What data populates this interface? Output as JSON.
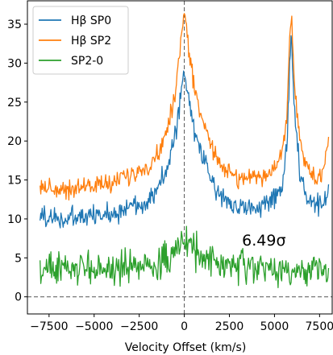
{
  "chart_data": {
    "type": "line",
    "xlabel": "Velocity Offset (km/s)",
    "ylabel": "",
    "xlim": [
      -8700,
      8200
    ],
    "ylim": [
      -2.2,
      38
    ],
    "xticks": [
      -7500,
      -5000,
      -2500,
      0,
      2500,
      5000,
      7500
    ],
    "xtick_labels": [
      "−7500",
      "−5000",
      "−2500",
      "0",
      "2500",
      "5000",
      "7500"
    ],
    "yticks": [
      0,
      5,
      10,
      15,
      20,
      25,
      30,
      35
    ],
    "ytick_labels": [
      "0",
      "5",
      "10",
      "15",
      "20",
      "25",
      "30",
      "35"
    ],
    "grid": false,
    "legend_position": "top-left",
    "reference_lines": [
      {
        "orientation": "horizontal",
        "value": 0,
        "style": "dashed",
        "color": "#555555"
      },
      {
        "orientation": "vertical",
        "value": 0,
        "style": "dashed",
        "color": "#555555"
      }
    ],
    "annotations": [
      {
        "text": "6.49σ",
        "x": 3200,
        "y": 6.6
      }
    ],
    "series": [
      {
        "name": "Hβ SP0",
        "color": "#1f77b4",
        "x": [
          -8000,
          -7500,
          -7000,
          -6500,
          -6000,
          -5500,
          -5000,
          -4500,
          -4000,
          -3500,
          -3000,
          -2500,
          -2000,
          -1500,
          -1000,
          -600,
          -300,
          -100,
          0,
          100,
          300,
          600,
          1000,
          1500,
          2000,
          2500,
          3000,
          3500,
          4000,
          4500,
          5000,
          5400,
          5700,
          5850,
          5950,
          6100,
          6400,
          6800,
          7200,
          7600,
          8000
        ],
        "y": [
          10.5,
          10.2,
          10.0,
          10.0,
          10.1,
          10.3,
          10.3,
          10.5,
          10.8,
          11.1,
          11.5,
          11.9,
          12.6,
          13.8,
          16.0,
          19.5,
          24.0,
          27.5,
          29.0,
          27.2,
          24.2,
          21.0,
          18.0,
          15.0,
          13.2,
          12.1,
          11.7,
          11.4,
          11.4,
          11.8,
          12.6,
          14.0,
          19.5,
          30.5,
          33.5,
          24.0,
          16.0,
          12.4,
          11.4,
          11.6,
          14.0
        ]
      },
      {
        "name": "Hβ SP2",
        "color": "#ff7f0e",
        "x": [
          -8000,
          -7500,
          -7000,
          -6500,
          -6000,
          -5500,
          -5000,
          -4500,
          -4000,
          -3500,
          -3000,
          -2500,
          -2000,
          -1500,
          -1000,
          -600,
          -300,
          -100,
          0,
          100,
          300,
          600,
          1000,
          1500,
          2000,
          2500,
          3000,
          3500,
          4000,
          4500,
          5000,
          5400,
          5700,
          5850,
          5950,
          6100,
          6400,
          6800,
          7200,
          7600,
          8000
        ],
        "y": [
          14.2,
          14.0,
          13.8,
          13.8,
          14.0,
          14.2,
          14.3,
          14.5,
          14.7,
          15.0,
          15.5,
          16.0,
          16.8,
          18.2,
          21.0,
          25.0,
          30.5,
          35.0,
          36.7,
          34.5,
          30.0,
          26.5,
          23.0,
          19.5,
          17.0,
          15.8,
          15.3,
          15.2,
          15.3,
          15.6,
          16.4,
          18.0,
          23.5,
          34.0,
          36.7,
          28.0,
          20.0,
          16.4,
          15.2,
          15.6,
          20.5
        ]
      },
      {
        "name": "SP2-0",
        "color": "#2ca02c",
        "x": [
          -8000,
          -7500,
          -7000,
          -6500,
          -6000,
          -5500,
          -5000,
          -4500,
          -4000,
          -3500,
          -3000,
          -2500,
          -2000,
          -1500,
          -1000,
          -600,
          -300,
          -100,
          0,
          100,
          300,
          600,
          1000,
          1500,
          2000,
          2500,
          3000,
          3500,
          4000,
          4500,
          5000,
          5400,
          5700,
          5850,
          5950,
          6100,
          6400,
          6800,
          7200,
          7600,
          8000
        ],
        "y": [
          3.4,
          3.5,
          3.6,
          3.5,
          3.6,
          3.7,
          3.7,
          3.6,
          3.7,
          3.8,
          3.8,
          3.9,
          4.0,
          4.3,
          4.8,
          5.6,
          6.4,
          7.0,
          7.3,
          7.1,
          6.6,
          5.9,
          5.2,
          4.6,
          4.2,
          3.9,
          3.8,
          3.7,
          3.6,
          3.5,
          3.5,
          3.5,
          3.3,
          2.6,
          1.3,
          3.0,
          3.6,
          3.7,
          3.6,
          3.6,
          4.2
        ]
      }
    ]
  }
}
